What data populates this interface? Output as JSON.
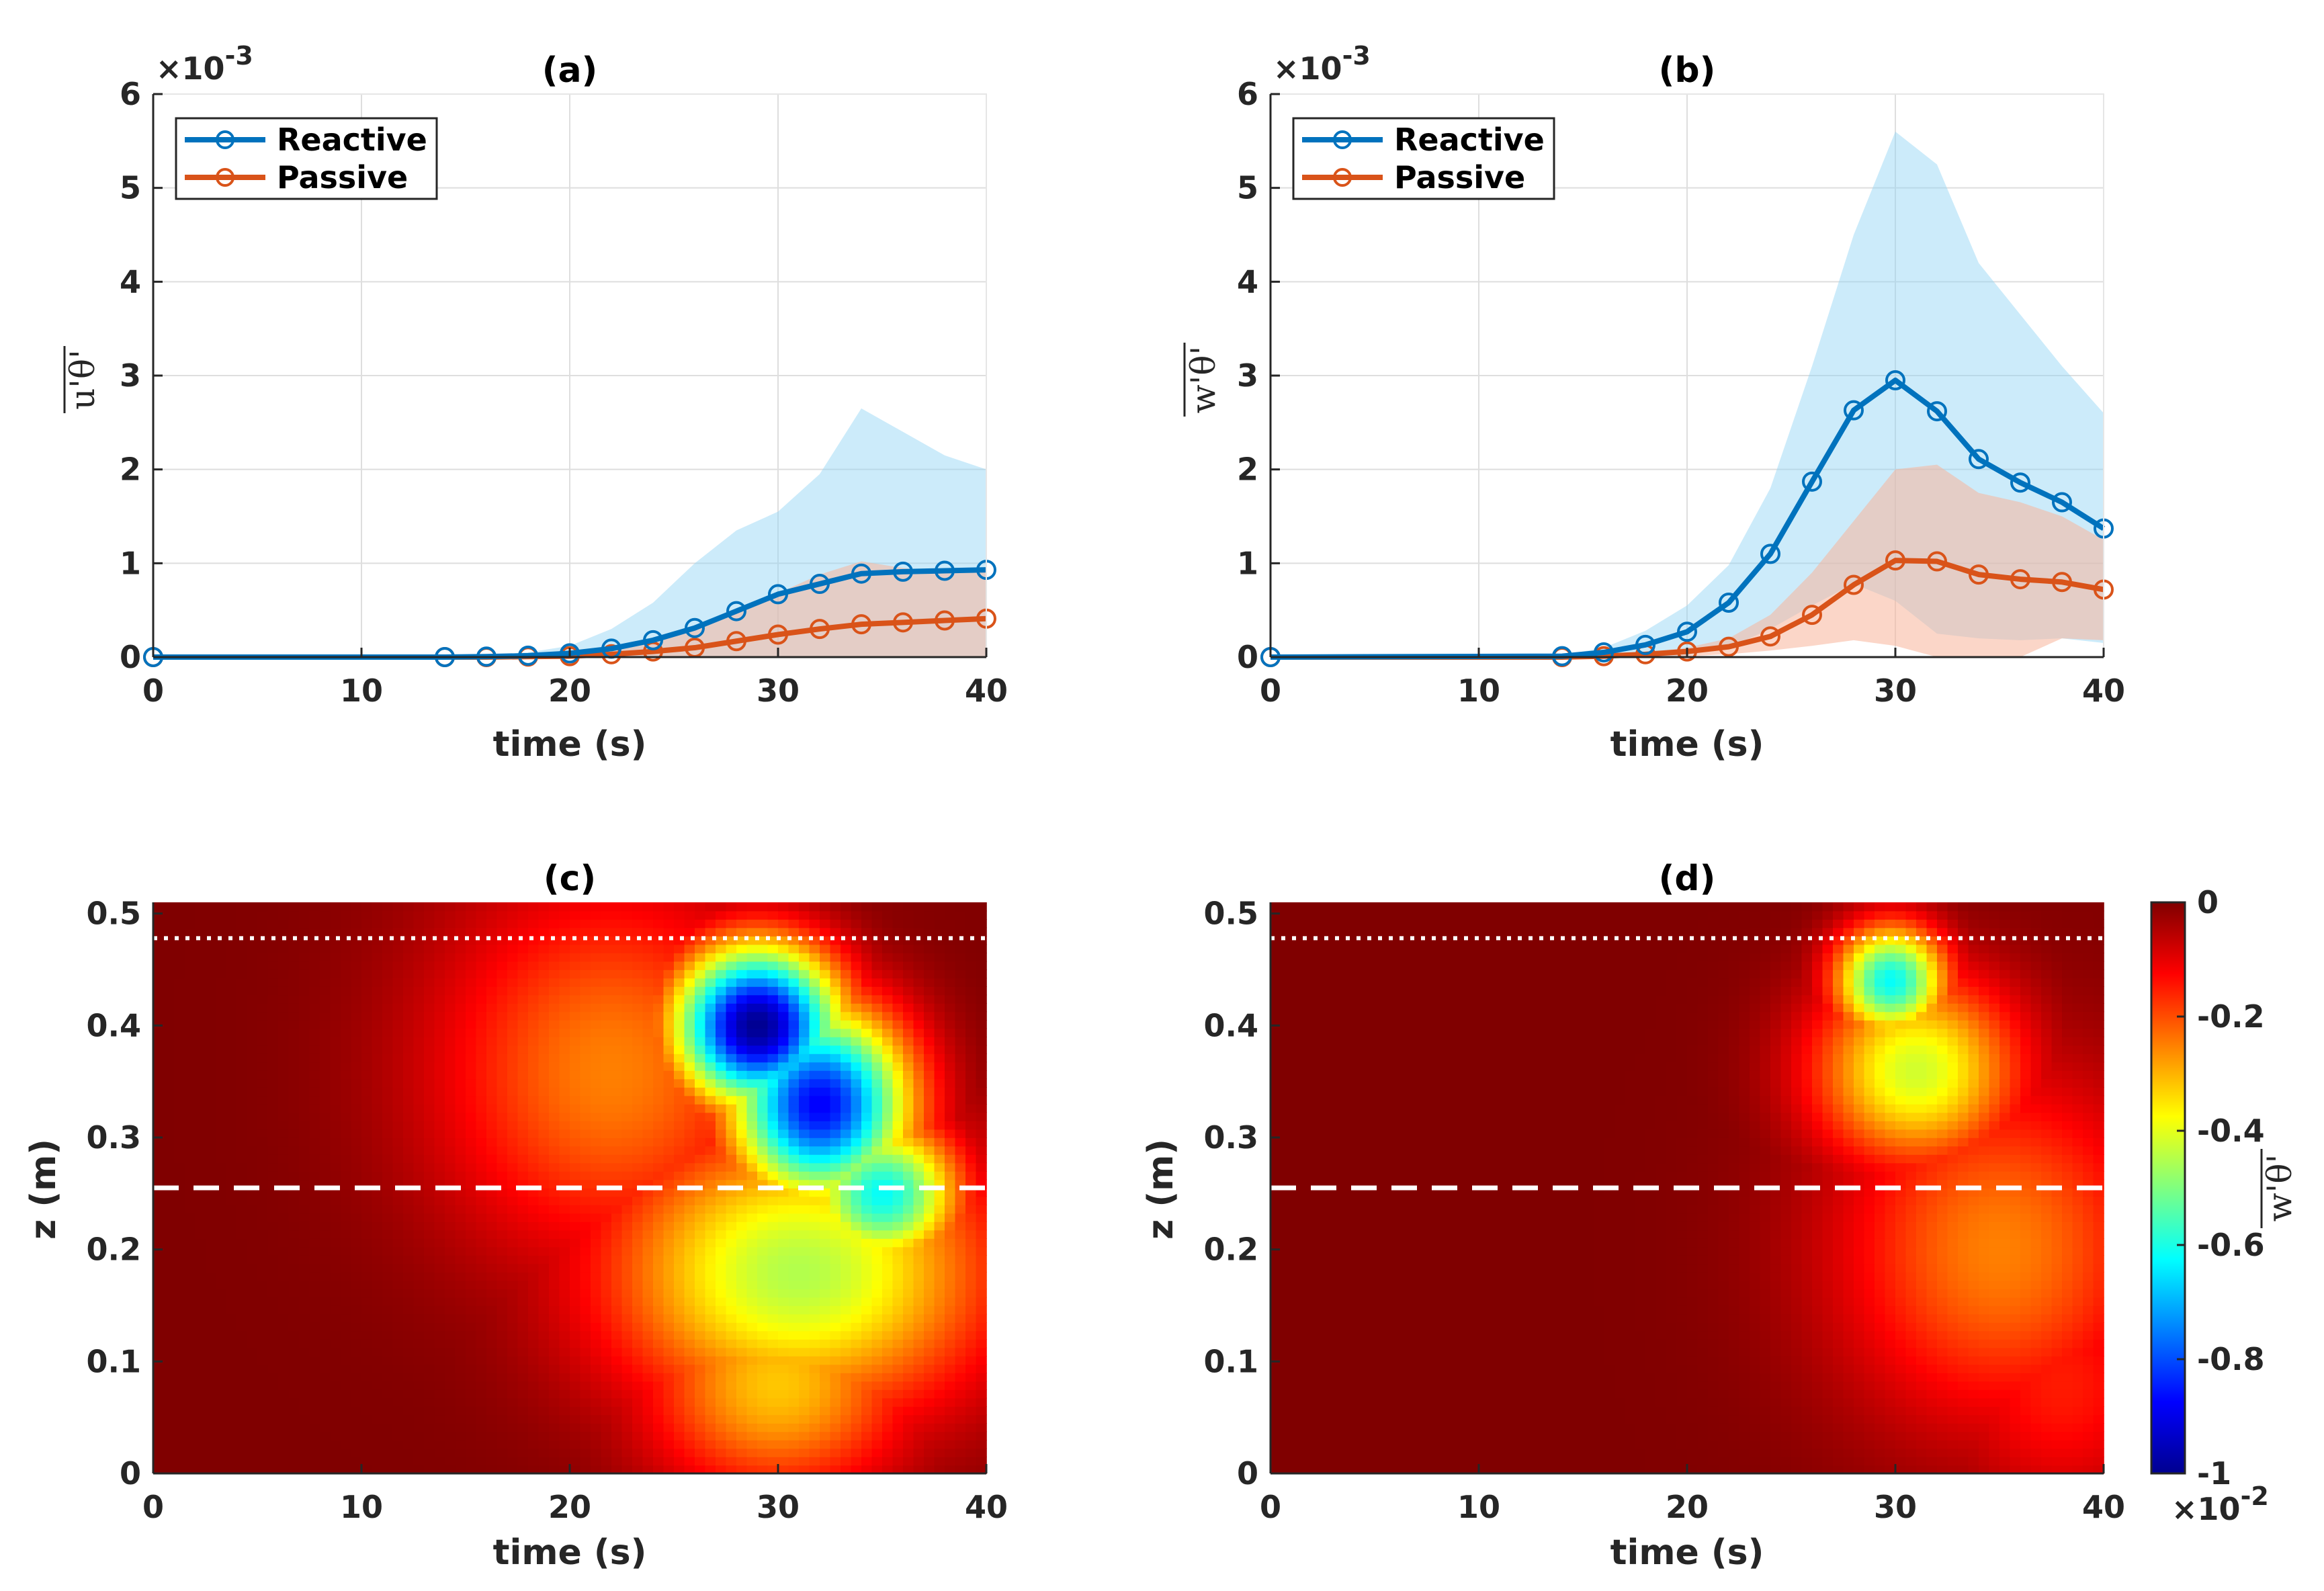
{
  "colors": {
    "reactive": "#0072BD",
    "passive": "#D95319",
    "reactive_band": "#8FD3F3",
    "passive_band": "#F8B59B",
    "grid": "#dedede",
    "axis": "#262626"
  },
  "chart_data": [
    {
      "id": "a",
      "type": "line",
      "title": "(a)",
      "xlabel": "time (s)",
      "ylabel": "u'θ'",
      "xlim": [
        0,
        40
      ],
      "ylim": [
        0,
        6
      ],
      "xticks": [
        "0",
        "10",
        "20",
        "30",
        "40"
      ],
      "yticks": [
        "0",
        "1",
        "2",
        "3",
        "4",
        "5",
        "6"
      ],
      "exponent": "×10",
      "exponent_power": "-3",
      "grid": true,
      "legend": {
        "location": "top-left",
        "entries": [
          "Reactive",
          "Passive"
        ]
      },
      "series": [
        {
          "name": "Reactive",
          "x": [
            0,
            14,
            16,
            18,
            20,
            22,
            24,
            26,
            28,
            30,
            32,
            34,
            36,
            38,
            40
          ],
          "y": [
            0,
            0,
            0.005,
            0.015,
            0.04,
            0.09,
            0.18,
            0.31,
            0.49,
            0.67,
            0.78,
            0.89,
            0.91,
            0.92,
            0.93
          ],
          "band_upper": [
            0,
            0,
            0.02,
            0.05,
            0.12,
            0.3,
            0.58,
            1.0,
            1.35,
            1.55,
            1.95,
            2.65,
            2.4,
            2.15,
            2.0
          ],
          "band_lower": [
            0,
            0,
            0,
            0,
            0,
            0,
            0,
            0,
            0,
            0,
            0,
            0,
            0,
            0,
            0
          ]
        },
        {
          "name": "Passive",
          "x": [
            0,
            14,
            16,
            18,
            20,
            22,
            24,
            26,
            28,
            30,
            32,
            34,
            36,
            38,
            40
          ],
          "y": [
            0,
            0,
            0,
            0.005,
            0.01,
            0.03,
            0.06,
            0.1,
            0.17,
            0.24,
            0.3,
            0.35,
            0.37,
            0.39,
            0.41
          ],
          "band_upper": [
            0,
            0,
            0,
            0.01,
            0.02,
            0.06,
            0.15,
            0.3,
            0.5,
            0.68,
            0.88,
            1.02,
            0.95,
            0.9,
            0.92
          ],
          "band_lower": [
            0,
            0,
            0,
            0,
            0,
            0,
            0,
            0,
            0,
            0,
            0,
            0,
            0,
            0,
            0
          ]
        }
      ]
    },
    {
      "id": "b",
      "type": "line",
      "title": "(b)",
      "xlabel": "time (s)",
      "ylabel": "w'θ'",
      "xlim": [
        0,
        40
      ],
      "ylim": [
        0,
        6
      ],
      "xticks": [
        "0",
        "10",
        "20",
        "30",
        "40"
      ],
      "yticks": [
        "0",
        "1",
        "2",
        "3",
        "4",
        "5",
        "6"
      ],
      "exponent": "×10",
      "exponent_power": "-3",
      "grid": true,
      "legend": {
        "location": "top-left",
        "entries": [
          "Reactive",
          "Passive"
        ]
      },
      "series": [
        {
          "name": "Reactive",
          "x": [
            0,
            14,
            16,
            18,
            20,
            22,
            24,
            26,
            28,
            30,
            32,
            34,
            36,
            38,
            40
          ],
          "y": [
            0,
            0.01,
            0.05,
            0.13,
            0.27,
            0.58,
            1.1,
            1.87,
            2.63,
            2.95,
            2.62,
            2.11,
            1.86,
            1.65,
            1.37
          ],
          "band_upper": [
            0,
            0.02,
            0.1,
            0.28,
            0.55,
            0.98,
            1.8,
            3.1,
            4.5,
            5.6,
            5.25,
            4.2,
            3.65,
            3.1,
            2.6
          ],
          "band_lower": [
            0,
            0,
            0,
            0,
            0.02,
            0.1,
            0.3,
            0.55,
            0.78,
            0.6,
            0.25,
            0.2,
            0.18,
            0.2,
            0.15
          ]
        },
        {
          "name": "Passive",
          "x": [
            0,
            14,
            16,
            18,
            20,
            22,
            24,
            26,
            28,
            30,
            32,
            34,
            36,
            38,
            40
          ],
          "y": [
            0,
            0,
            0.01,
            0.03,
            0.06,
            0.11,
            0.22,
            0.45,
            0.77,
            1.03,
            1.02,
            0.88,
            0.83,
            0.8,
            0.72
          ],
          "band_upper": [
            0,
            0.01,
            0.02,
            0.05,
            0.1,
            0.2,
            0.45,
            0.9,
            1.45,
            2.0,
            2.05,
            1.75,
            1.65,
            1.5,
            1.25
          ],
          "band_lower": [
            0,
            0,
            0,
            0,
            0.01,
            0.03,
            0.07,
            0.12,
            0.18,
            0.12,
            0,
            0,
            0,
            0.2,
            0.18
          ]
        }
      ]
    },
    {
      "id": "c",
      "type": "heatmap",
      "title": "(c)",
      "xlabel": "time (s)",
      "ylabel": "z (m)",
      "xlim": [
        0,
        40
      ],
      "ylim": [
        0,
        0.51
      ],
      "xticks": [
        "0",
        "10",
        "20",
        "30",
        "40"
      ],
      "yticks": [
        "0",
        "0.1",
        "0.2",
        "0.3",
        "0.4",
        "0.5"
      ],
      "dotted_line_z": 0.478,
      "dashed_line_z": 0.255,
      "blobs": [
        {
          "t": 29,
          "z": 0.4,
          "value": -1.0,
          "sigma_t": 2.8,
          "sigma_z": 0.05
        },
        {
          "t": 32,
          "z": 0.33,
          "value": -0.88,
          "sigma_t": 3.0,
          "sigma_z": 0.06
        },
        {
          "t": 35,
          "z": 0.25,
          "value": -0.62,
          "sigma_t": 2.6,
          "sigma_z": 0.045
        },
        {
          "t": 31,
          "z": 0.18,
          "value": -0.45,
          "sigma_t": 6.5,
          "sigma_z": 0.09
        },
        {
          "t": 30,
          "z": 0.08,
          "value": -0.32,
          "sigma_t": 4.5,
          "sigma_z": 0.07
        },
        {
          "t": 22,
          "z": 0.36,
          "value": -0.25,
          "sigma_t": 6.0,
          "sigma_z": 0.12
        }
      ]
    },
    {
      "id": "d",
      "type": "heatmap",
      "title": "(d)",
      "xlabel": "time (s)",
      "ylabel": "z (m)",
      "xlim": [
        0,
        40
      ],
      "ylim": [
        0,
        0.51
      ],
      "xticks": [
        "0",
        "10",
        "20",
        "30",
        "40"
      ],
      "yticks": [
        "0",
        "0.1",
        "0.2",
        "0.3",
        "0.4",
        "0.5"
      ],
      "dotted_line_z": 0.478,
      "dashed_line_z": 0.255,
      "blobs": [
        {
          "t": 29.8,
          "z": 0.44,
          "value": -0.62,
          "sigma_t": 1.9,
          "sigma_z": 0.035
        },
        {
          "t": 31,
          "z": 0.36,
          "value": -0.42,
          "sigma_t": 3.5,
          "sigma_z": 0.06
        },
        {
          "t": 35,
          "z": 0.2,
          "value": -0.25,
          "sigma_t": 5.5,
          "sigma_z": 0.11
        },
        {
          "t": 38,
          "z": 0.08,
          "value": -0.15,
          "sigma_t": 4.0,
          "sigma_z": 0.08
        }
      ]
    }
  ],
  "colorbar": {
    "label": "w'θ'",
    "ticks": [
      "0",
      "-0.2",
      "-0.4",
      "-0.6",
      "-0.8",
      "-1"
    ],
    "range": [
      -1,
      0
    ],
    "exponent": "×10",
    "exponent_power": "-2"
  }
}
